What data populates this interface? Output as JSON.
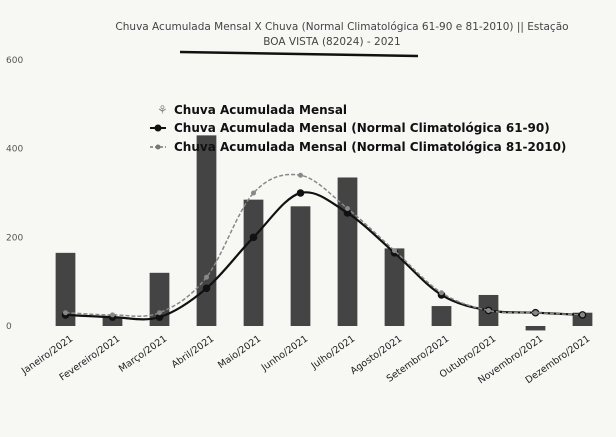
{
  "chart_data": {
    "type": "bar",
    "title_line1": "Chuva Acumulada Mensal X Chuva (Normal Climatológica 61-90 e 81-2010) || Estação",
    "title_line2": "BOA VISTA (82024) - 2021",
    "categories": [
      "Janeiro/2021",
      "Fevereiro/2021",
      "Março/2021",
      "Abril/2021",
      "Maio/2021",
      "Junho/2021",
      "Julho/2021",
      "Agosto/2021",
      "Setembro/2021",
      "Outubro/2021",
      "Novembro/2021",
      "Dezembro/2021"
    ],
    "ylim": [
      0,
      600
    ],
    "yticks": [
      0,
      200,
      400,
      600
    ],
    "grid": false,
    "legend_position": "top-center",
    "series": [
      {
        "name": "Chuva Acumulada Mensal",
        "kind": "bar",
        "color": "#444444",
        "values": [
          165,
          20,
          120,
          430,
          285,
          270,
          335,
          175,
          45,
          70,
          -10,
          30
        ]
      },
      {
        "name": "Chuva Acumulada Mensal (Normal Climatológica 61-90)",
        "kind": "line",
        "color": "#111111",
        "values": [
          25,
          20,
          20,
          85,
          200,
          300,
          255,
          165,
          70,
          35,
          30,
          25
        ]
      },
      {
        "name": "Chuva Acumulada Mensal (Normal Climatológica 81-2010)",
        "kind": "line-dashed",
        "color": "#888888",
        "values": [
          30,
          25,
          30,
          110,
          300,
          340,
          265,
          170,
          75,
          35,
          30,
          25
        ]
      }
    ]
  }
}
